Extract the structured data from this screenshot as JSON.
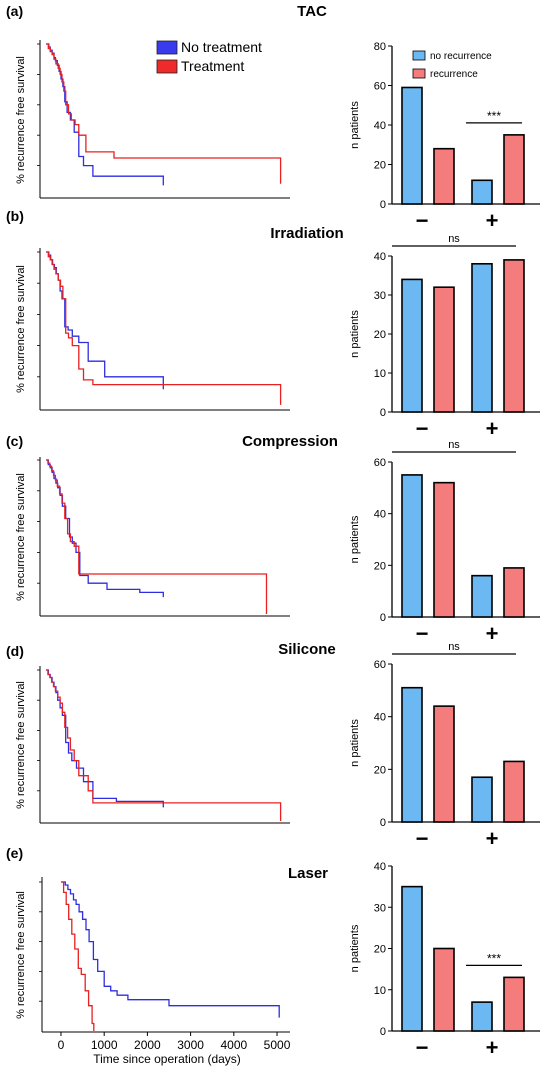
{
  "figure": {
    "km_ylabel": "% recurrence free survival",
    "km_xlabel": "Time since operation (days)",
    "km_xticks": [
      "0",
      "1000",
      "2000",
      "3000",
      "4000",
      "5000"
    ],
    "bar_ylabel": "n patients",
    "group_labels": [
      "−",
      "+"
    ],
    "colors": {
      "no_treatment": "#2e2ee0",
      "treatment": "#e82020",
      "no_recurrence": "#6cb8f2",
      "recurrence": "#f47c7c"
    }
  },
  "km_legend": [
    {
      "label": "No treatment",
      "color": "#3a3aee"
    },
    {
      "label": "Treatment",
      "color": "#ee2a2a"
    }
  ],
  "bar_legend": [
    {
      "label": "no recurrence",
      "color": "#6cb8f2"
    },
    {
      "label": "recurrence",
      "color": "#f47c7c"
    }
  ],
  "panels": [
    {
      "letter": "(a)",
      "title": "TAC"
    },
    {
      "letter": "(b)",
      "title": "Irradiation"
    },
    {
      "letter": "(c)",
      "title": "Compression"
    },
    {
      "letter": "(d)",
      "title": "Silicone"
    },
    {
      "letter": "(e)",
      "title": "Laser"
    }
  ],
  "chart_data": [
    {
      "type": "bar",
      "panel": "(a)",
      "title": "TAC",
      "ylabel": "n patients",
      "categories": [
        "−",
        "+"
      ],
      "ylim": [
        0,
        80
      ],
      "yticks": [
        0,
        20,
        40,
        60,
        80
      ],
      "series": [
        {
          "name": "no recurrence",
          "values": [
            59,
            12
          ]
        },
        {
          "name": "recurrence",
          "values": [
            28,
            35
          ]
        }
      ],
      "annotations": [
        {
          "text": "***",
          "group": 1
        }
      ],
      "legend": "top-right"
    },
    {
      "type": "bar",
      "panel": "(b)",
      "title": "Irradiation",
      "ylabel": "n patients",
      "categories": [
        "−",
        "+"
      ],
      "ylim": [
        0,
        40
      ],
      "yticks": [
        0,
        10,
        20,
        30,
        40
      ],
      "series": [
        {
          "name": "no recurrence",
          "values": [
            34,
            38
          ]
        },
        {
          "name": "recurrence",
          "values": [
            32,
            39
          ]
        }
      ],
      "annotations": [
        {
          "text": "ns",
          "span": "all"
        }
      ]
    },
    {
      "type": "bar",
      "panel": "(c)",
      "title": "Compression",
      "ylabel": "n patients",
      "categories": [
        "−",
        "+"
      ],
      "ylim": [
        0,
        60
      ],
      "yticks": [
        0,
        20,
        40,
        60
      ],
      "series": [
        {
          "name": "no recurrence",
          "values": [
            55,
            16
          ]
        },
        {
          "name": "recurrence",
          "values": [
            52,
            19
          ]
        }
      ],
      "annotations": [
        {
          "text": "ns",
          "span": "all"
        }
      ]
    },
    {
      "type": "bar",
      "panel": "(d)",
      "title": "Silicone",
      "ylabel": "n patients",
      "categories": [
        "−",
        "+"
      ],
      "ylim": [
        0,
        60
      ],
      "yticks": [
        0,
        20,
        40,
        60
      ],
      "series": [
        {
          "name": "no recurrence",
          "values": [
            51,
            17
          ]
        },
        {
          "name": "recurrence",
          "values": [
            44,
            23
          ]
        }
      ],
      "annotations": [
        {
          "text": "ns",
          "span": "all"
        }
      ]
    },
    {
      "type": "bar",
      "panel": "(e)",
      "title": "Laser",
      "ylabel": "n patients",
      "categories": [
        "−",
        "+"
      ],
      "ylim": [
        0,
        40
      ],
      "yticks": [
        0,
        10,
        20,
        30,
        40
      ],
      "series": [
        {
          "name": "no recurrence",
          "values": [
            35,
            7
          ]
        },
        {
          "name": "recurrence",
          "values": [
            20,
            13
          ]
        }
      ],
      "annotations": [
        {
          "text": "***",
          "group": 1
        }
      ]
    },
    {
      "type": "line",
      "panel": "(a)",
      "ylabel": "% recurrence free survival",
      "xlim": [
        0,
        5200
      ],
      "ylim": [
        0,
        1.0
      ],
      "series": [
        {
          "name": "No treatment",
          "step": true,
          "x": [
            0,
            60,
            90,
            130,
            170,
            200,
            240,
            280,
            320,
            360,
            400,
            450,
            520,
            600,
            700,
            800,
            1000,
            2500
          ],
          "y": [
            1.0,
            0.98,
            0.96,
            0.94,
            0.91,
            0.89,
            0.86,
            0.82,
            0.77,
            0.72,
            0.62,
            0.55,
            0.5,
            0.42,
            0.26,
            0.2,
            0.13,
            0.07
          ]
        },
        {
          "name": "Treatment",
          "step": true,
          "x": [
            0,
            50,
            90,
            130,
            170,
            210,
            260,
            300,
            340,
            380,
            420,
            480,
            540,
            620,
            700,
            850,
            1450,
            5000
          ],
          "y": [
            1.0,
            0.97,
            0.95,
            0.93,
            0.9,
            0.87,
            0.84,
            0.8,
            0.75,
            0.69,
            0.6,
            0.54,
            0.5,
            0.47,
            0.4,
            0.29,
            0.25,
            0.08
          ]
        }
      ]
    },
    {
      "type": "line",
      "panel": "(b)",
      "ylabel": "% recurrence free survival",
      "xlim": [
        0,
        5200
      ],
      "ylim": [
        0,
        1.0
      ],
      "series": [
        {
          "name": "No treatment",
          "step": true,
          "x": [
            0,
            60,
            100,
            140,
            180,
            220,
            260,
            300,
            340,
            400,
            470,
            560,
            700,
            900,
            1250,
            2500
          ],
          "y": [
            1.0,
            0.98,
            0.95,
            0.92,
            0.9,
            0.86,
            0.82,
            0.75,
            0.7,
            0.52,
            0.5,
            0.46,
            0.42,
            0.3,
            0.2,
            0.12
          ]
        },
        {
          "name": "Treatment",
          "step": true,
          "x": [
            0,
            50,
            90,
            130,
            170,
            210,
            260,
            310,
            360,
            420,
            480,
            560,
            700,
            800,
            1000,
            5000
          ],
          "y": [
            1.0,
            0.97,
            0.95,
            0.92,
            0.89,
            0.86,
            0.82,
            0.78,
            0.7,
            0.48,
            0.45,
            0.4,
            0.25,
            0.18,
            0.15,
            0.02
          ]
        }
      ]
    },
    {
      "type": "line",
      "panel": "(c)",
      "ylabel": "% recurrence free survival",
      "xlim": [
        0,
        5200
      ],
      "ylim": [
        0,
        1.0
      ],
      "series": [
        {
          "name": "No treatment",
          "step": true,
          "x": [
            0,
            50,
            90,
            130,
            170,
            210,
            250,
            300,
            350,
            420,
            500,
            560,
            640,
            720,
            900,
            1300,
            2000,
            2500
          ],
          "y": [
            1.0,
            0.97,
            0.95,
            0.92,
            0.88,
            0.85,
            0.82,
            0.77,
            0.7,
            0.62,
            0.5,
            0.46,
            0.4,
            0.25,
            0.2,
            0.16,
            0.14,
            0.11
          ]
        },
        {
          "name": "Treatment",
          "step": true,
          "x": [
            0,
            40,
            80,
            120,
            160,
            200,
            240,
            290,
            340,
            400,
            460,
            520,
            600,
            700,
            4700
          ],
          "y": [
            1.0,
            0.98,
            0.96,
            0.93,
            0.9,
            0.87,
            0.83,
            0.78,
            0.72,
            0.62,
            0.52,
            0.47,
            0.44,
            0.26,
            0.0
          ]
        }
      ]
    },
    {
      "type": "line",
      "panel": "(d)",
      "ylabel": "% recurrence free survival",
      "xlim": [
        0,
        5200
      ],
      "ylim": [
        0,
        1.0
      ],
      "series": [
        {
          "name": "No treatment",
          "step": true,
          "x": [
            0,
            50,
            90,
            130,
            170,
            210,
            250,
            300,
            350,
            420,
            480,
            550,
            650,
            800,
            1000,
            1500,
            2500
          ],
          "y": [
            1.0,
            0.97,
            0.95,
            0.92,
            0.89,
            0.85,
            0.8,
            0.75,
            0.7,
            0.52,
            0.45,
            0.4,
            0.35,
            0.26,
            0.15,
            0.13,
            0.09
          ]
        },
        {
          "name": "Treatment",
          "step": true,
          "x": [
            0,
            40,
            80,
            120,
            160,
            200,
            250,
            300,
            350,
            400,
            460,
            520,
            600,
            700,
            900,
            1000,
            5000
          ],
          "y": [
            1.0,
            0.97,
            0.95,
            0.92,
            0.89,
            0.86,
            0.82,
            0.78,
            0.72,
            0.62,
            0.55,
            0.47,
            0.4,
            0.3,
            0.2,
            0.12,
            0.0
          ]
        }
      ]
    },
    {
      "type": "line",
      "panel": "(e)",
      "ylabel": "% recurrence free survival",
      "xlabel": "Time since operation (days)",
      "xlim": [
        -300,
        5300
      ],
      "ylim": [
        0,
        1.0
      ],
      "xticks": [
        0,
        1000,
        2000,
        3000,
        4000,
        5000
      ],
      "series": [
        {
          "name": "No treatment",
          "step": true,
          "x": [
            0,
            100,
            160,
            220,
            290,
            350,
            420,
            500,
            580,
            650,
            750,
            850,
            1000,
            1150,
            1300,
            1550,
            2500,
            5050
          ],
          "y": [
            1.0,
            0.98,
            0.95,
            0.92,
            0.88,
            0.85,
            0.8,
            0.75,
            0.68,
            0.6,
            0.48,
            0.4,
            0.3,
            0.27,
            0.24,
            0.21,
            0.17,
            0.09
          ]
        },
        {
          "name": "Treatment",
          "step": true,
          "x": [
            0,
            60,
            120,
            180,
            250,
            320,
            400,
            470,
            560,
            640,
            720,
            760
          ],
          "y": [
            1.0,
            0.93,
            0.85,
            0.75,
            0.65,
            0.55,
            0.42,
            0.38,
            0.27,
            0.17,
            0.05,
            0.0
          ]
        }
      ]
    }
  ]
}
